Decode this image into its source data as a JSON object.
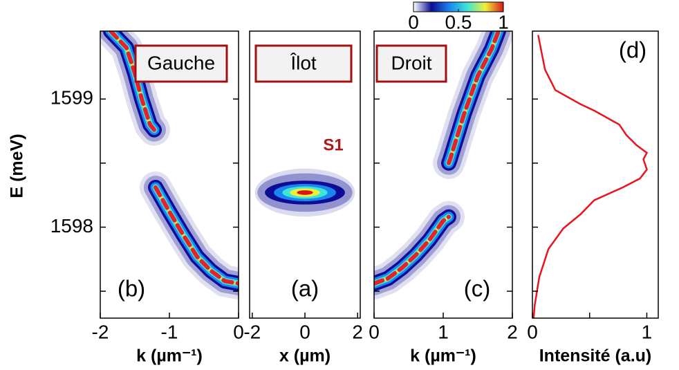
{
  "colorbar": {
    "lim": [
      0,
      1
    ],
    "ticks": [
      0,
      0.5,
      1
    ],
    "colors": [
      "#ffffff",
      "#0c0c96",
      "#1c86f0",
      "#3ee6d6",
      "#f2ee3a",
      "#d81818"
    ]
  },
  "chart_data": [
    {
      "type": "heatmap",
      "label": "(b)",
      "box_label": "Gauche",
      "xlabel": "k (µm⁻¹)",
      "ylabel": "E (meV)",
      "xlim": [
        -2,
        0
      ],
      "xticks": [
        -2,
        -1,
        0
      ],
      "ylim": [
        1597.29,
        1599.53
      ],
      "yticks": [
        1598,
        1599
      ],
      "ytick_marks": [
        1597.5,
        1598.5
      ],
      "fit_color": "#e8202a",
      "branches": [
        {
          "x": [
            -1.85,
            -1.62,
            -1.5,
            -1.4,
            -1.28,
            -1.22
          ],
          "y": [
            1599.53,
            1599.4,
            1599.2,
            1599.0,
            1598.8,
            1598.76
          ]
        },
        {
          "x": [
            -1.2,
            -1.0,
            -0.8,
            -0.6,
            -0.4,
            -0.2,
            0
          ],
          "y": [
            1598.31,
            1598.12,
            1597.94,
            1597.77,
            1597.66,
            1597.58,
            1597.56
          ]
        }
      ]
    },
    {
      "type": "heatmap",
      "label": "(a)",
      "box_label": "Îlot",
      "xlabel": "x (µm)",
      "annotation": "S1",
      "xlim": [
        -2.1,
        2.1
      ],
      "xticks": [
        -2,
        0,
        2
      ],
      "ylim": [
        1597.29,
        1599.53
      ],
      "spot": {
        "x": 0,
        "y": 1598.27,
        "x_halfwidth": 1.9,
        "y_halfwidth": 0.15
      }
    },
    {
      "type": "heatmap",
      "label": "(c)",
      "box_label": "Droit",
      "xlabel": "k (µm⁻¹)",
      "xlim": [
        0,
        2
      ],
      "xticks": [
        0,
        1,
        2
      ],
      "ylim": [
        1597.29,
        1599.53
      ],
      "ytick_marks": [
        1597.5,
        1598,
        1598.5,
        1599
      ],
      "fit_color": "#e8202a",
      "branches": [
        {
          "x": [
            0,
            0.2,
            0.4,
            0.6,
            0.8,
            1.0,
            1.08
          ],
          "y": [
            1597.56,
            1597.6,
            1597.68,
            1597.78,
            1597.9,
            1598.05,
            1598.08
          ]
        },
        {
          "x": [
            1.08,
            1.1,
            1.3,
            1.5,
            1.7,
            1.8
          ],
          "y": [
            1598.5,
            1598.53,
            1598.88,
            1599.18,
            1599.39,
            1599.53
          ]
        }
      ]
    },
    {
      "type": "line",
      "label": "(d)",
      "xlabel": "Intensité (a.u)",
      "color": "#e8141e",
      "xlim": [
        0,
        1.1
      ],
      "xticks": [
        0,
        1
      ],
      "xtick_marks": [
        0.5
      ],
      "ylim": [
        1597.29,
        1599.53
      ],
      "ytick_marks": [
        1597.5,
        1598,
        1598.5,
        1599
      ],
      "x": [
        0.05,
        0.11,
        0.2,
        0.42,
        0.54,
        0.76,
        0.82,
        0.91,
        1.0,
        0.97,
        1.0,
        0.94,
        0.79,
        0.54,
        0.42,
        0.27,
        0.14,
        0.06,
        0.02,
        0.01
      ],
      "y": [
        1599.5,
        1599.23,
        1599.07,
        1598.96,
        1598.91,
        1598.8,
        1598.72,
        1598.64,
        1598.58,
        1598.53,
        1598.45,
        1598.38,
        1598.31,
        1598.21,
        1598.1,
        1597.99,
        1597.83,
        1597.61,
        1597.39,
        1597.29
      ]
    }
  ]
}
